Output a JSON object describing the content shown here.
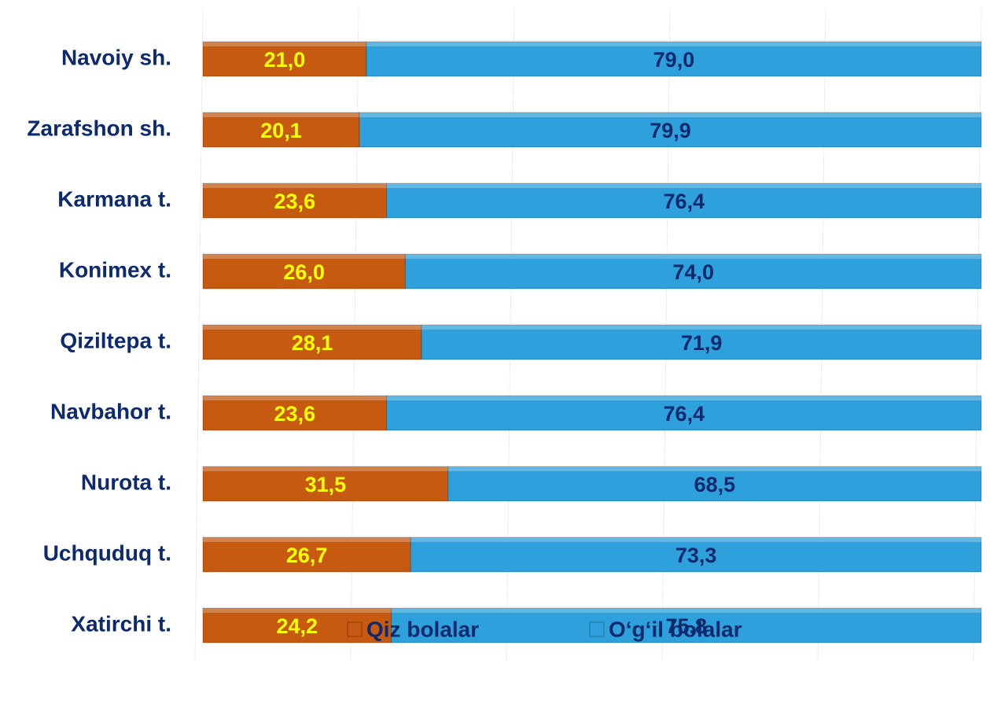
{
  "chart_data": {
    "type": "bar",
    "orientation": "horizontal",
    "stacked": true,
    "categories": [
      "Navoiy sh.",
      "Zarafshon sh.",
      "Karmana t.",
      "Konimex t.",
      "Qiziltepa t.",
      "Navbahor t.",
      "Nurota t.",
      "Uchquduq t.",
      "Xatirchi t."
    ],
    "series": [
      {
        "name": "Qiz bolalar",
        "color": "#c65a11",
        "label_color": "#ffff00",
        "values": [
          21.0,
          20.1,
          23.6,
          26.0,
          28.1,
          23.6,
          31.5,
          26.7,
          24.2
        ],
        "value_labels": [
          "21,0",
          "20,1",
          "23,6",
          "26,0",
          "28,1",
          "23,6",
          "31,5",
          "26,7",
          "24,2"
        ]
      },
      {
        "name": "O‘g‘il bolalar",
        "color": "#2ea0dc",
        "label_color": "#0d2a6e",
        "values": [
          79.0,
          79.9,
          76.4,
          74.0,
          71.9,
          76.4,
          68.5,
          73.3,
          75.8
        ],
        "value_labels": [
          "79,0",
          "79,9",
          "76,4",
          "74,0",
          "71,9",
          "76,4",
          "68,5",
          "73,3",
          "75,8"
        ]
      }
    ],
    "xlim": [
      0,
      100
    ],
    "xticks": [
      0,
      20,
      40,
      60,
      80,
      100
    ],
    "grid": true,
    "legend": "bottom"
  }
}
